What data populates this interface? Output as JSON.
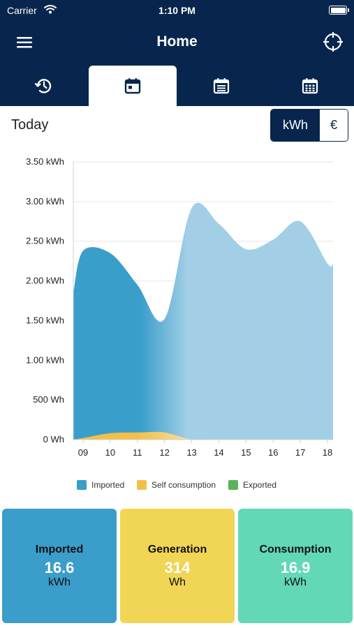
{
  "status_bar": {
    "carrier": "Carrier",
    "time": "1:10 PM"
  },
  "nav": {
    "title": "Home",
    "menu_icon": "hamburger-menu-icon",
    "locate_icon": "crosshair-icon"
  },
  "tabs": [
    {
      "icon": "clock-icon",
      "active": false
    },
    {
      "icon": "calendar-day-icon",
      "active": true
    },
    {
      "icon": "calendar-list-icon",
      "active": false
    },
    {
      "icon": "calendar-grid-icon",
      "active": false
    }
  ],
  "period_label": "Today",
  "unit_toggle": {
    "options": [
      "kWh",
      "€"
    ],
    "selected": "kWh"
  },
  "colors": {
    "navy": "#08264d",
    "imported": "#3a9ecb",
    "imported_light": "#a2cfe6",
    "self_consumption": "#f2c04a",
    "exported": "#58b35a",
    "card_imported": "#3b9dca",
    "card_generation": "#f1d554",
    "card_consumption": "#62d8b6"
  },
  "chart_data": {
    "type": "area",
    "x": [
      "09",
      "10",
      "11",
      "12",
      "13",
      "14",
      "15",
      "16",
      "17",
      "18"
    ],
    "ylim": [
      0,
      3.5
    ],
    "yticks": [
      "0 Wh",
      "500 Wh",
      "1.00 kWh",
      "1.50 kWh",
      "2.00 kWh",
      "2.50 kWh",
      "3.00 kWh",
      "3.50 kWh"
    ],
    "series": [
      {
        "name": "Imported",
        "values": [
          2.38,
          2.35,
          1.95,
          1.52,
          2.92,
          2.72,
          2.4,
          2.52,
          2.75,
          2.22
        ]
      },
      {
        "name": "Self consumption",
        "values": [
          0.02,
          0.08,
          0.09,
          0.09,
          0.0,
          0.0,
          0.0,
          0.0,
          0.0,
          0.0
        ]
      },
      {
        "name": "Exported",
        "values": [
          0,
          0,
          0,
          0,
          0,
          0,
          0,
          0,
          0,
          0
        ]
      }
    ],
    "legend": [
      "Imported",
      "Self consumption",
      "Exported"
    ],
    "legend_position": "bottom",
    "grid": true
  },
  "cards": [
    {
      "label": "Imported",
      "value": "16.6",
      "unit": "kWh"
    },
    {
      "label": "Generation",
      "value": "314",
      "unit": "Wh"
    },
    {
      "label": "Consumption",
      "value": "16.9",
      "unit": "kWh"
    }
  ]
}
